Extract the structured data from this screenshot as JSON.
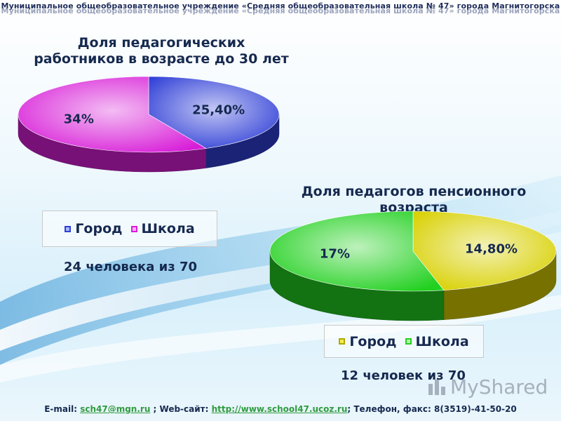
{
  "header": {
    "text": "Муниципальное общеобразовательное учреждение «Средняя общеобразовательная школа № 47» города Магнитогорска"
  },
  "chart_data": [
    {
      "type": "pie",
      "title": "Доля педагогических\nработников в возрасте до 30 лет",
      "categories": [
        "Город",
        "Школа"
      ],
      "values": [
        25.4,
        34
      ],
      "value_labels": [
        "25,40%",
        "34%"
      ],
      "colors": [
        "#2f3fd6",
        "#d81ed8"
      ],
      "legend": "bottom",
      "note": "24 человека из 70"
    },
    {
      "type": "pie",
      "title": "Доля педагогов пенсионного\nвозраста",
      "categories": [
        "Город",
        "Школа"
      ],
      "values": [
        14.8,
        17
      ],
      "value_labels": [
        "14,80%",
        "17%"
      ],
      "colors": [
        "#d8d000",
        "#22d020"
      ],
      "legend": "bottom",
      "note": "12 человек из 70"
    }
  ],
  "footer": {
    "email_prefix": "E-mail: ",
    "email": "sch47@mgn.ru",
    "site_prefix": " ; Web-сайт: ",
    "site": "http://www.school47.ucoz.ru",
    "phone": "; Телефон, факс: 8(3519)-41-50-20"
  },
  "watermark": {
    "text": "MyShared"
  }
}
